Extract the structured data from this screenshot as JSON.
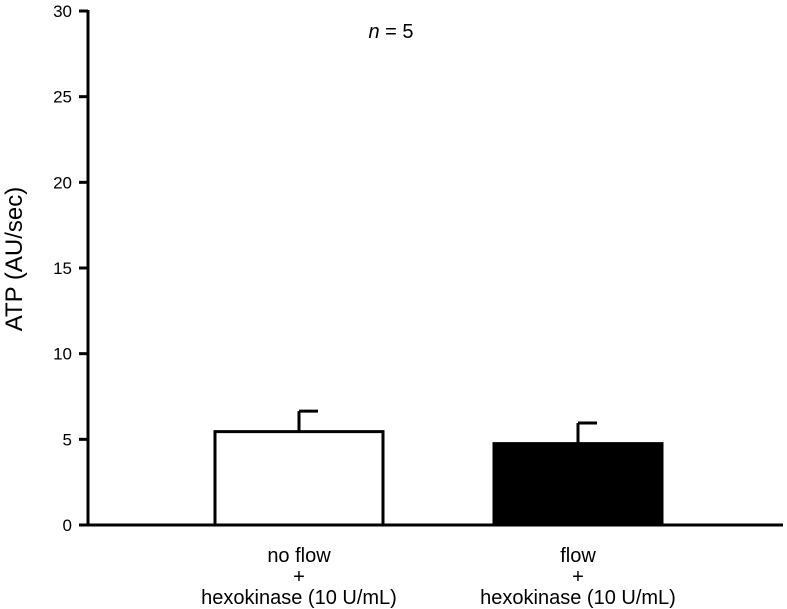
{
  "chart_data": {
    "type": "bar",
    "title": "",
    "annotation": {
      "italic": "n",
      "rest": " = 5"
    },
    "ylabel": "ATP (AU/sec)",
    "xlabel": "",
    "ylim": [
      0,
      30
    ],
    "yticks": [
      "0",
      "5",
      "10",
      "15",
      "20",
      "25",
      "30"
    ],
    "grid": false,
    "categories": [
      {
        "lines": [
          "no flow",
          "+",
          "hexokinase (10 U/mL)"
        ]
      },
      {
        "lines": [
          "flow",
          "+",
          "hexokinase (10 U/mL)"
        ]
      }
    ],
    "values": [
      5.45,
      4.75
    ],
    "error": [
      1.2,
      1.2
    ],
    "colors": {
      "fill": [
        "#ffffff",
        "#000000"
      ],
      "stroke": "#000000"
    }
  }
}
